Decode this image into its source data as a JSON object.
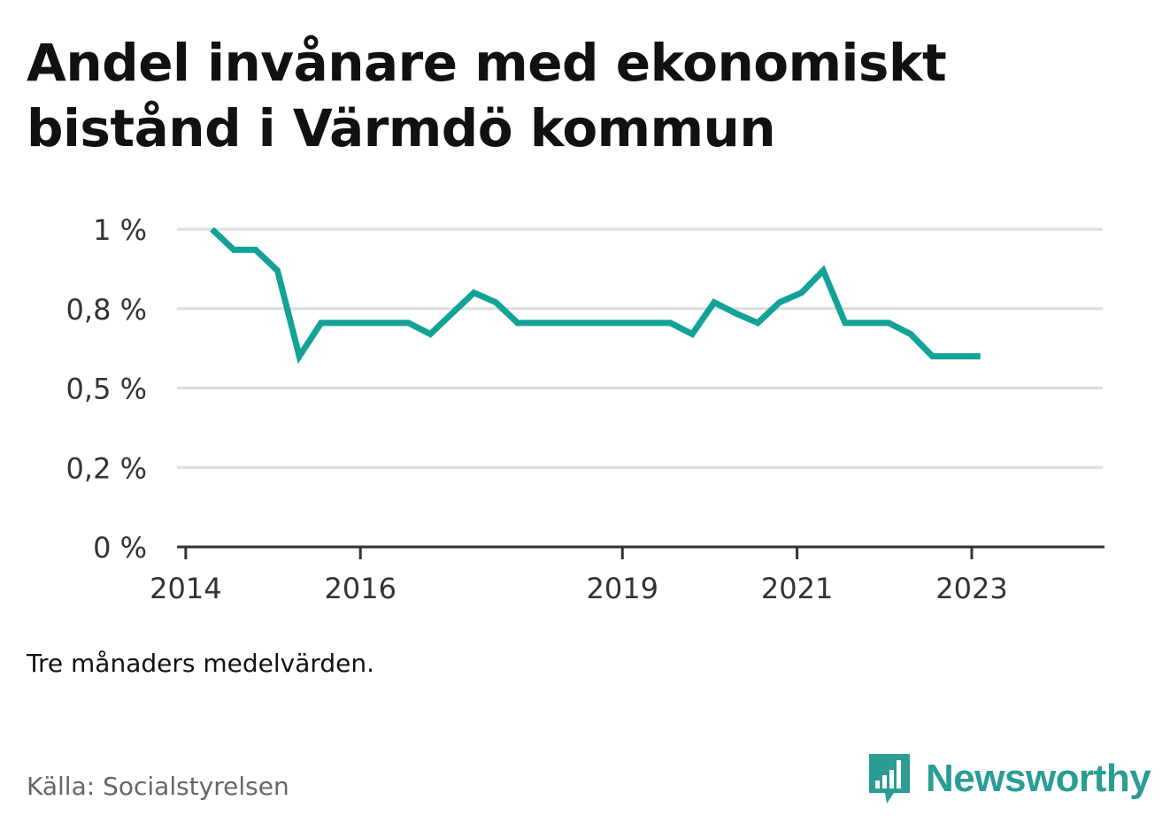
{
  "title": "Andel invånare med ekonomiskt bistånd i Värmdö kommun",
  "note": "Tre månaders medelvärden.",
  "source": "Källa: Socialstyrelsen",
  "brand": {
    "name": "Newsworthy",
    "icon": "newsworthy-logo-icon",
    "color": "#2a9d94"
  },
  "colors": {
    "line": "#13a297",
    "grid": "#dddddd",
    "axis": "#333333",
    "text": "#333333"
  },
  "chart_data": {
    "type": "line",
    "title": "Andel invånare med ekonomiskt bistånd i Värmdö kommun",
    "xlabel": "",
    "ylabel": "",
    "ylim": [
      0,
      1.0
    ],
    "y_ticks": [
      {
        "value": 0,
        "label": "0 %"
      },
      {
        "value": 0.25,
        "label": "0,2 %"
      },
      {
        "value": 0.5,
        "label": "0,5 %"
      },
      {
        "value": 0.75,
        "label": "0,8 %"
      },
      {
        "value": 1.0,
        "label": "1 %"
      }
    ],
    "x_ticks": [
      {
        "year": 2014,
        "label": "2014"
      },
      {
        "year": 2016,
        "label": "2016"
      },
      {
        "year": 2019,
        "label": "2019"
      },
      {
        "year": 2021,
        "label": "2021"
      },
      {
        "year": 2023,
        "label": "2023"
      }
    ],
    "xlim": [
      2013.9,
      2024.5
    ],
    "grid": true,
    "series": [
      {
        "x": [
          2014.3,
          2014.55,
          2014.8,
          2015.05,
          2015.3,
          2015.55,
          2015.8,
          2016.05,
          2016.3,
          2016.55,
          2016.8,
          2017.05,
          2017.3,
          2017.55,
          2017.8,
          2018.05,
          2018.3,
          2018.55,
          2018.8,
          2019.05,
          2019.3,
          2019.55,
          2019.8,
          2020.05,
          2020.3,
          2020.55,
          2020.8,
          2021.05,
          2021.3,
          2021.55,
          2021.8,
          2022.05,
          2022.3,
          2022.55,
          2022.8,
          2023.05,
          2023.1
        ],
        "y": [
          1.0,
          0.935,
          0.935,
          0.87,
          0.6,
          0.705,
          0.705,
          0.705,
          0.705,
          0.705,
          0.67,
          0.735,
          0.8,
          0.77,
          0.705,
          0.705,
          0.705,
          0.705,
          0.705,
          0.705,
          0.705,
          0.705,
          0.67,
          0.77,
          0.735,
          0.705,
          0.77,
          0.8,
          0.87,
          0.705,
          0.705,
          0.705,
          0.67,
          0.6,
          0.6,
          0.6,
          0.6
        ]
      }
    ]
  }
}
